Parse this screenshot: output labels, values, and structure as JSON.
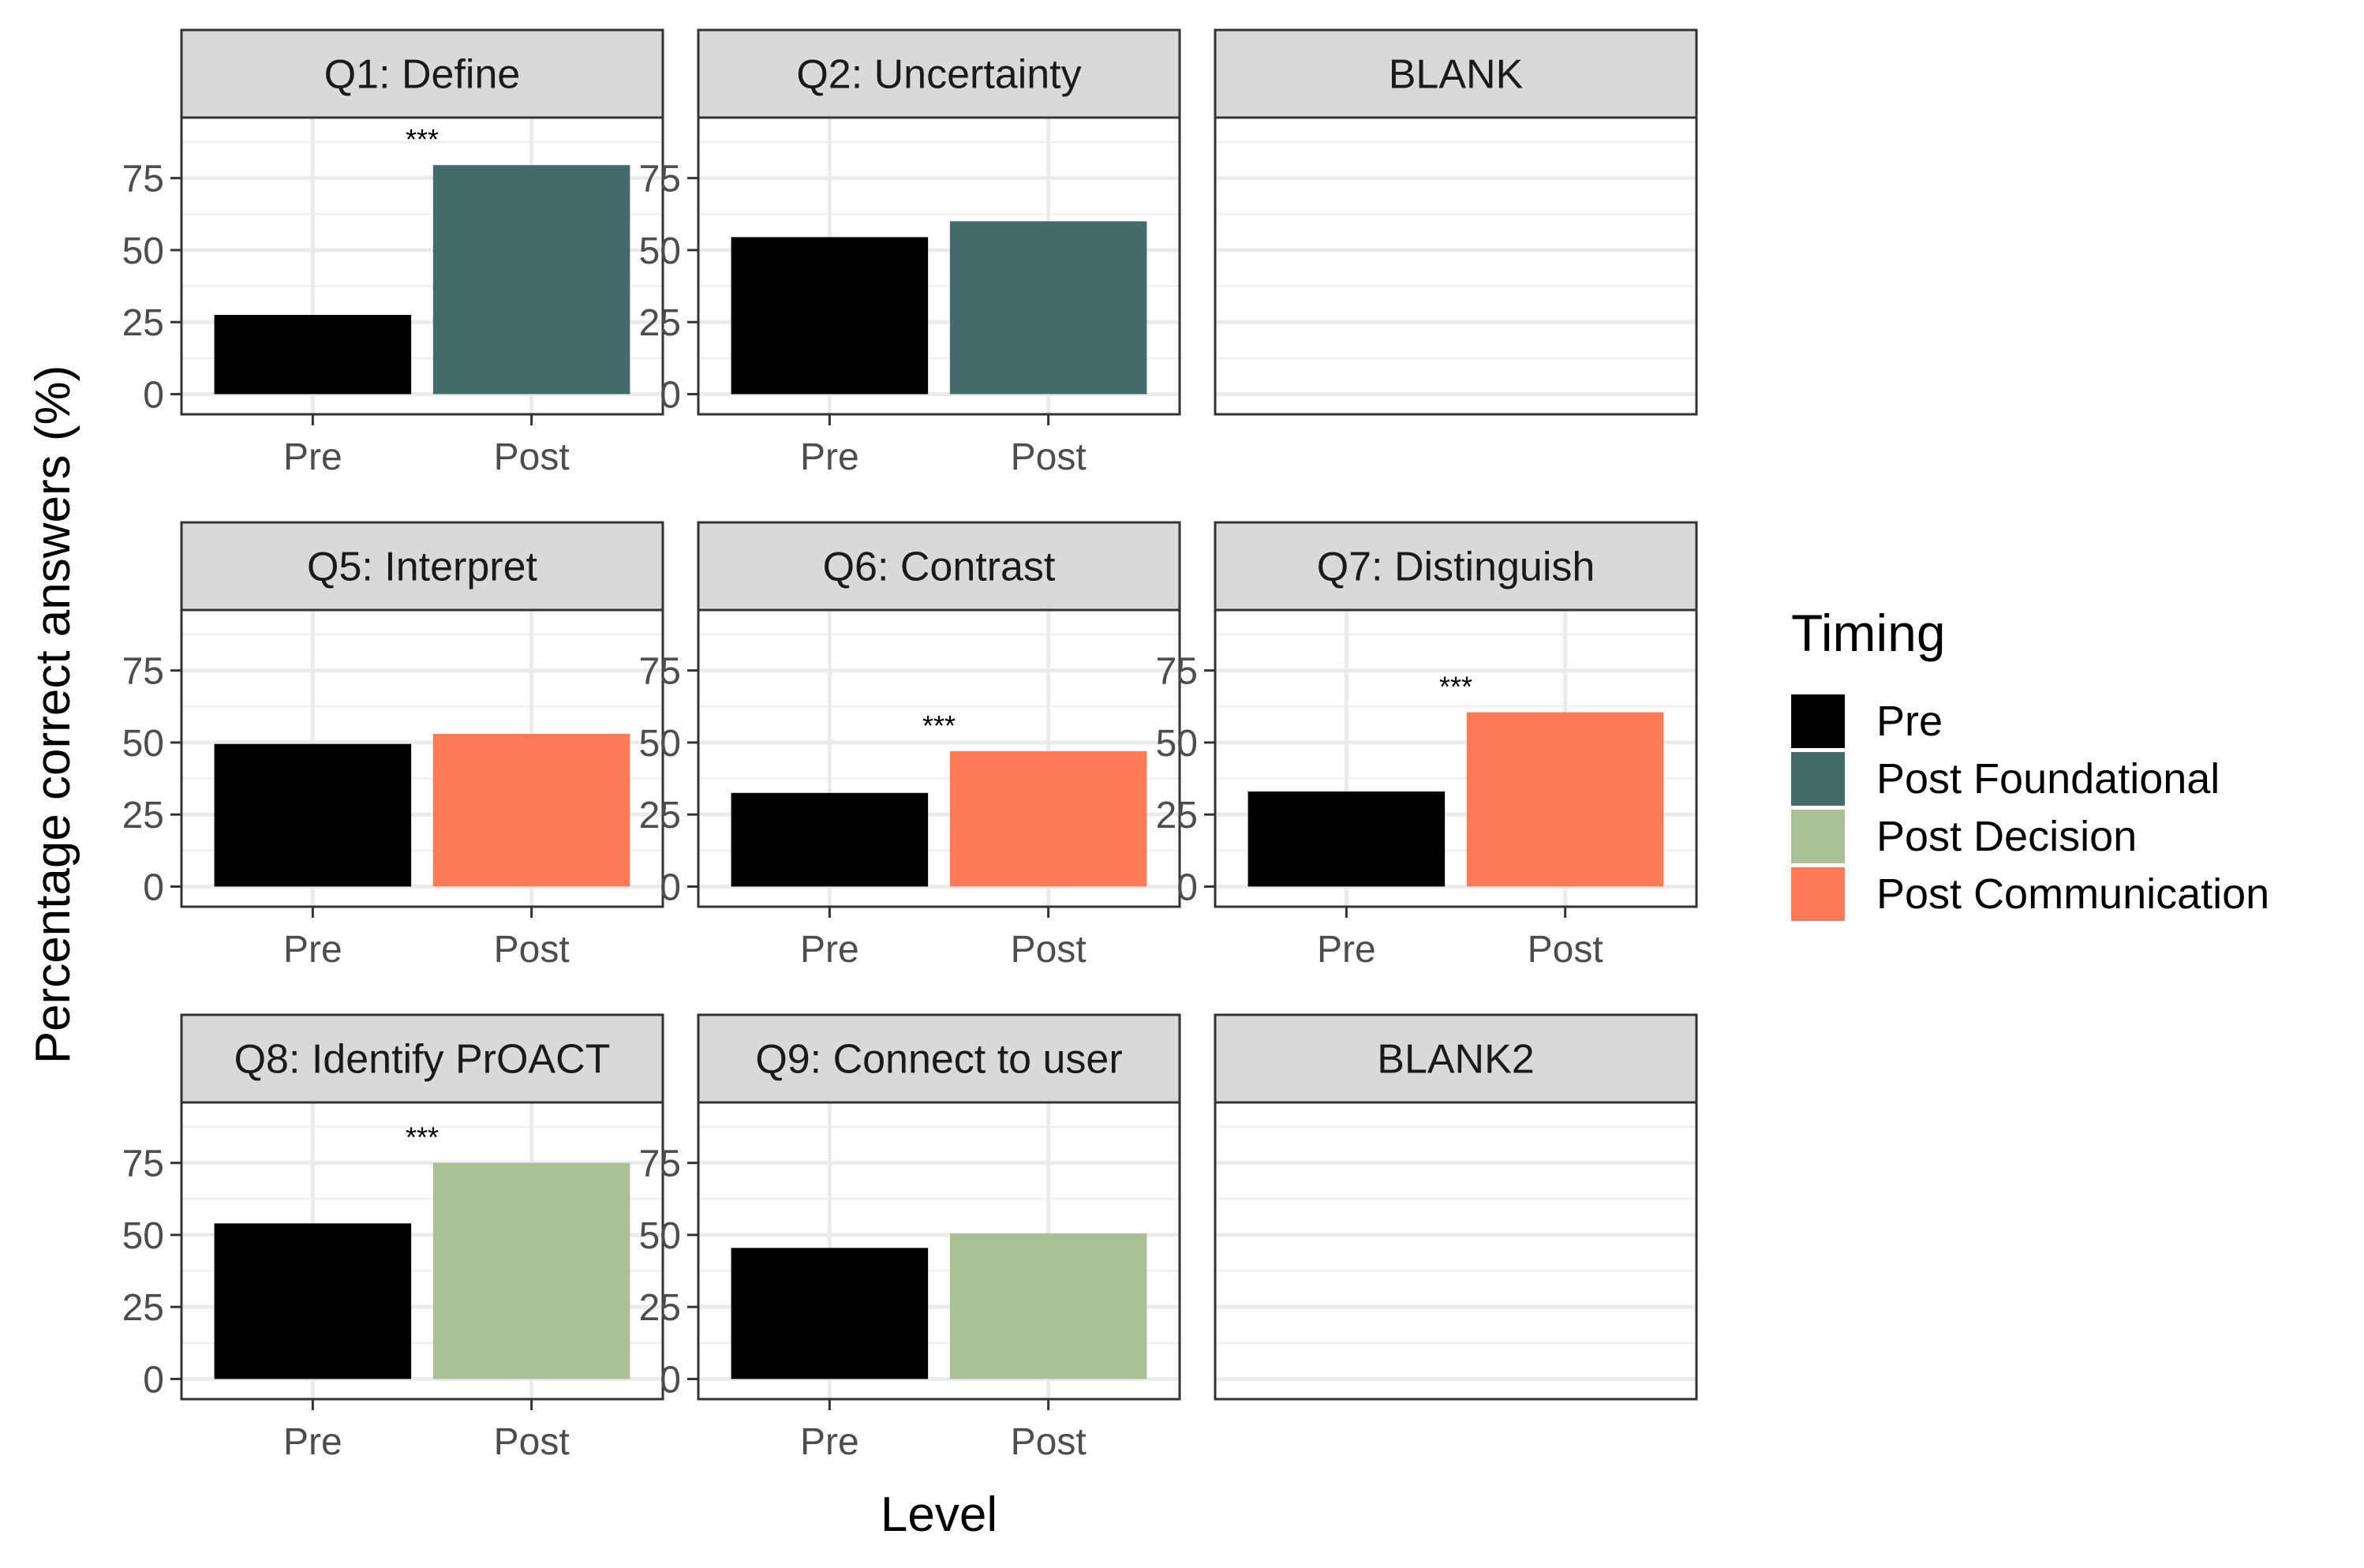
{
  "chart_data": {
    "type": "bar",
    "facet_grid": {
      "rows": 3,
      "cols": 3
    },
    "xlabel": "Level",
    "ylabel": "Percentage correct answers (%)",
    "ylim": [
      0,
      100
    ],
    "yticks": [
      0,
      25,
      50,
      75
    ],
    "categories": [
      "Pre",
      "Post"
    ],
    "grid": true,
    "legend": {
      "title": "Timing",
      "position": "right",
      "entries": [
        {
          "label": "Pre",
          "color": "#000000"
        },
        {
          "label": "Post Foundational",
          "color": "#426B69"
        },
        {
          "label": "Post Decision",
          "color": "#ABC096"
        },
        {
          "label": "Post Communication",
          "color": "#FF7B57"
        }
      ]
    },
    "panels": [
      {
        "title": "Q1: Define",
        "values": [
          27.5,
          79.5
        ],
        "post_timing": "Post Foundational",
        "significance": "***",
        "axes": true
      },
      {
        "title": "Q2: Uncertainty",
        "values": [
          54.5,
          60
        ],
        "post_timing": "Post Foundational",
        "significance": "",
        "axes": true
      },
      {
        "title": "BLANK",
        "values": [],
        "post_timing": "",
        "significance": "",
        "axes": false
      },
      {
        "title": "Q5: Interpret",
        "values": [
          49.5,
          53
        ],
        "post_timing": "Post Communication",
        "significance": "",
        "axes": true
      },
      {
        "title": "Q6: Contrast",
        "values": [
          32.5,
          47
        ],
        "post_timing": "Post Communication",
        "significance": "***",
        "axes": true
      },
      {
        "title": "Q7: Distinguish",
        "values": [
          33,
          60.5
        ],
        "post_timing": "Post Communication",
        "significance": "***",
        "axes": true
      },
      {
        "title": "Q8: Identify PrOACT",
        "values": [
          54,
          75
        ],
        "post_timing": "Post Decision",
        "significance": "***",
        "axes": true
      },
      {
        "title": "Q9: Connect to user",
        "values": [
          45.5,
          50.5
        ],
        "post_timing": "Post Decision",
        "significance": "",
        "axes": true
      },
      {
        "title": "BLANK2",
        "values": [],
        "post_timing": "",
        "significance": "",
        "axes": false
      }
    ]
  }
}
